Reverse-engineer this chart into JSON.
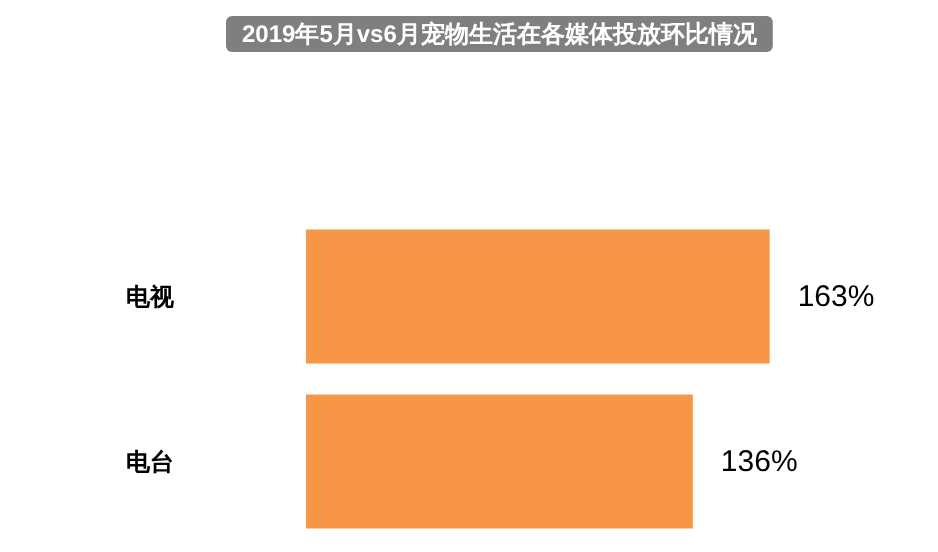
{
  "chart_data": {
    "type": "bar",
    "orientation": "horizontal",
    "title": "2019年5月vs6月宠物生活在各媒体投放环比情况",
    "categories": [
      "电视",
      "电台"
    ],
    "values": [
      163,
      136
    ],
    "color": "#f79646",
    "value_labels": [
      "163%",
      "136%"
    ]
  }
}
